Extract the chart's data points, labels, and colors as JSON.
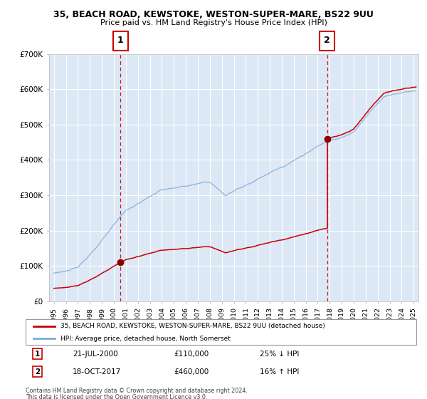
{
  "title1": "35, BEACH ROAD, KEWSTOKE, WESTON-SUPER-MARE, BS22 9UU",
  "title2": "Price paid vs. HM Land Registry's House Price Index (HPI)",
  "plot_bg": "#dce8f5",
  "ylim": [
    0,
    700000
  ],
  "yticks": [
    0,
    100000,
    200000,
    300000,
    400000,
    500000,
    600000,
    700000
  ],
  "ytick_labels": [
    "£0",
    "£100K",
    "£200K",
    "£300K",
    "£400K",
    "£500K",
    "£600K",
    "£700K"
  ],
  "xlim_left": 1994.6,
  "xlim_right": 2025.4,
  "sale1_date": 2000.55,
  "sale1_price": 110000,
  "sale2_date": 2017.79,
  "sale2_price": 460000,
  "legend_line1": "35, BEACH ROAD, KEWSTOKE, WESTON-SUPER-MARE, BS22 9UU (detached house)",
  "legend_line2": "HPI: Average price, detached house, North Somerset",
  "footnote1": "Contains HM Land Registry data © Crown copyright and database right 2024.",
  "footnote2": "This data is licensed under the Open Government Licence v3.0.",
  "ann1_date_str": "21-JUL-2000",
  "ann1_price_str": "£110,000",
  "ann1_hpi_str": "25% ↓ HPI",
  "ann2_date_str": "18-OCT-2017",
  "ann2_price_str": "£460,000",
  "ann2_hpi_str": "16% ↑ HPI",
  "red_color": "#cc0000",
  "blue_color": "#7aabda",
  "dot_color": "#880000",
  "grid_color": "#ffffff",
  "spine_color": "#bbbbbb"
}
